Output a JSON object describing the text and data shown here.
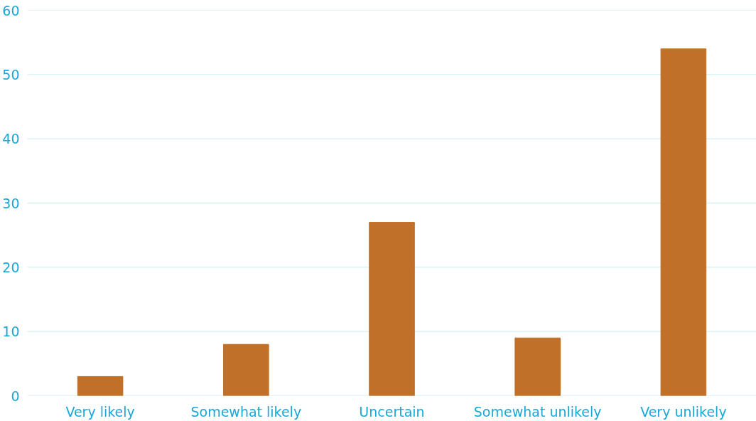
{
  "chart_data": {
    "type": "bar",
    "categories": [
      "Very likely",
      "Somewhat likely",
      "Uncertain",
      "Somewhat unlikely",
      "Very unlikely"
    ],
    "values": [
      3,
      8,
      27,
      9,
      54
    ],
    "color": "#c07028",
    "ylim": [
      0,
      60
    ],
    "yticks": [
      0,
      10,
      20,
      30,
      40,
      50,
      60
    ],
    "grid": "y"
  }
}
